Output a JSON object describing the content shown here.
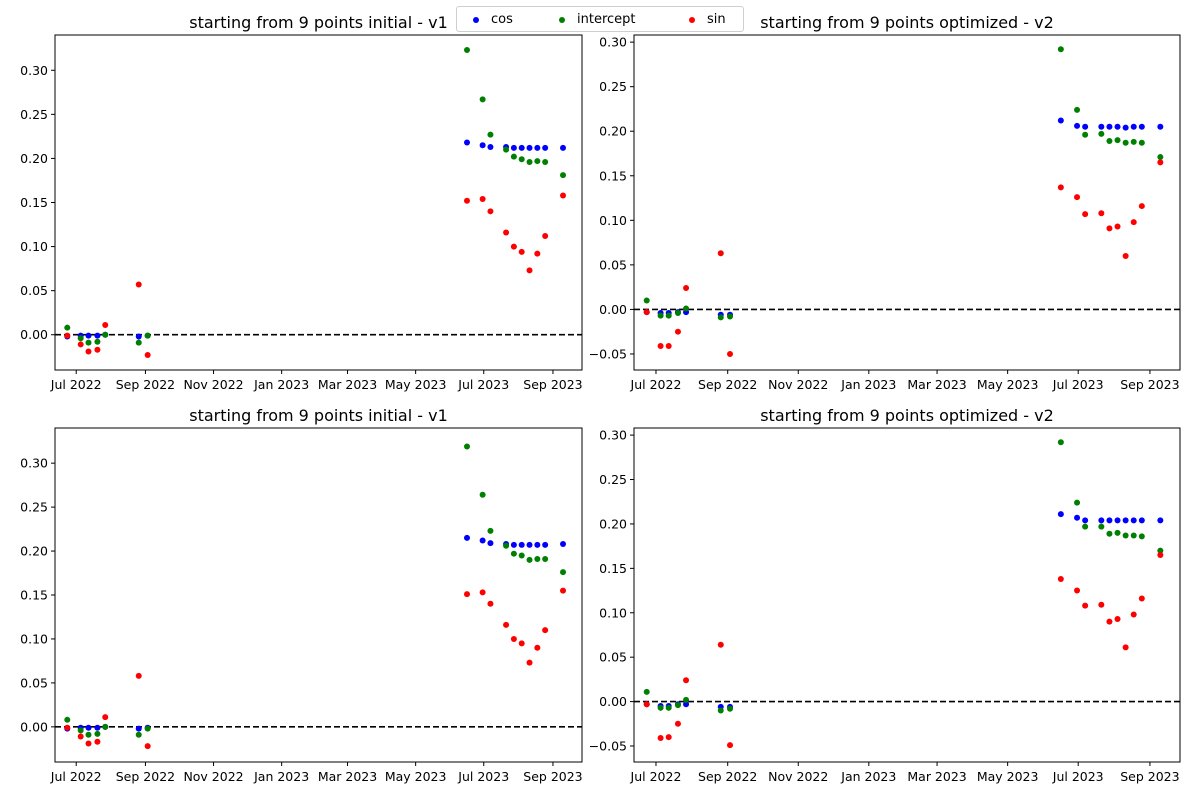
{
  "legend": {
    "placement": "top-center",
    "entries": [
      {
        "name": "cos",
        "color": "#0000ff"
      },
      {
        "name": "intercept",
        "color": "#008000"
      },
      {
        "name": "sin",
        "color": "#ff0000"
      }
    ]
  },
  "chart_data": [
    {
      "type": "scatter",
      "title": "starting from 9 points initial - v1",
      "xlabel": "",
      "ylabel": "",
      "xlim": [
        "2022-06-12",
        "2023-09-27"
      ],
      "ylim": [
        -0.04,
        0.34
      ],
      "xticks": [
        "2022-07-01",
        "2022-09-01",
        "2022-11-01",
        "2023-01-01",
        "2023-03-01",
        "2023-05-01",
        "2023-07-01",
        "2023-09-01"
      ],
      "xtick_labels": [
        "Jul 2022",
        "Sep 2022",
        "Nov 2022",
        "Jan 2023",
        "Mar 2023",
        "May 2023",
        "Jul 2023",
        "Sep 2023"
      ],
      "yticks": [
        0.0,
        0.05,
        0.1,
        0.15,
        0.2,
        0.25,
        0.3
      ],
      "ytick_labels": [
        "0.00",
        "0.05",
        "0.10",
        "0.15",
        "0.20",
        "0.25",
        "0.30"
      ],
      "hline": 0,
      "grid": false,
      "x": [
        "2022-06-23",
        "2022-07-05",
        "2022-07-12",
        "2022-07-20",
        "2022-07-27",
        "2022-08-26",
        "2022-09-03",
        "2023-06-16",
        "2023-06-30",
        "2023-07-07",
        "2023-07-21",
        "2023-07-28",
        "2023-08-04",
        "2023-08-11",
        "2023-08-18",
        "2023-08-25",
        "2023-09-10"
      ],
      "series": [
        {
          "name": "cos",
          "values": [
            -0.002,
            -0.001,
            -0.001,
            -0.001,
            0.0,
            -0.002,
            -0.001,
            0.218,
            0.215,
            0.213,
            0.213,
            0.212,
            0.212,
            0.212,
            0.212,
            0.212,
            0.212
          ]
        },
        {
          "name": "intercept",
          "values": [
            0.008,
            -0.004,
            -0.009,
            -0.008,
            0.0,
            -0.009,
            -0.001,
            0.323,
            0.267,
            0.227,
            0.21,
            0.202,
            0.199,
            0.196,
            0.197,
            0.196,
            0.181
          ]
        },
        {
          "name": "sin",
          "values": [
            -0.001,
            -0.011,
            -0.019,
            -0.017,
            0.011,
            0.057,
            -0.023,
            0.152,
            0.154,
            0.14,
            0.116,
            0.1,
            0.094,
            0.073,
            0.092,
            0.112,
            0.158
          ]
        }
      ]
    },
    {
      "type": "scatter",
      "title": "starting from 9 points optimized - v2",
      "xlabel": "",
      "ylabel": "",
      "xlim": [
        "2022-06-12",
        "2023-09-27"
      ],
      "ylim": [
        -0.068,
        0.308
      ],
      "xticks": [
        "2022-07-01",
        "2022-09-01",
        "2022-11-01",
        "2023-01-01",
        "2023-03-01",
        "2023-05-01",
        "2023-07-01",
        "2023-09-01"
      ],
      "xtick_labels": [
        "Jul 2022",
        "Sep 2022",
        "Nov 2022",
        "Jan 2023",
        "Mar 2023",
        "May 2023",
        "Jul 2023",
        "Sep 2023"
      ],
      "yticks": [
        -0.05,
        0.0,
        0.05,
        0.1,
        0.15,
        0.2,
        0.25,
        0.3
      ],
      "ytick_labels": [
        "−0.05",
        "0.00",
        "0.05",
        "0.10",
        "0.15",
        "0.20",
        "0.25",
        "0.30"
      ],
      "hline": 0,
      "grid": false,
      "x": [
        "2022-06-23",
        "2022-07-05",
        "2022-07-12",
        "2022-07-20",
        "2022-07-27",
        "2022-08-26",
        "2022-09-03",
        "2023-06-16",
        "2023-06-30",
        "2023-07-07",
        "2023-07-21",
        "2023-07-28",
        "2023-08-04",
        "2023-08-11",
        "2023-08-18",
        "2023-08-25",
        "2023-09-10"
      ],
      "series": [
        {
          "name": "cos",
          "values": [
            -0.003,
            -0.004,
            -0.004,
            -0.003,
            -0.003,
            -0.006,
            -0.006,
            0.212,
            0.206,
            0.205,
            0.205,
            0.205,
            0.205,
            0.204,
            0.205,
            0.205,
            0.205
          ]
        },
        {
          "name": "intercept",
          "values": [
            0.01,
            -0.007,
            -0.007,
            -0.004,
            0.001,
            -0.009,
            -0.008,
            0.292,
            0.224,
            0.196,
            0.197,
            0.189,
            0.19,
            0.187,
            0.188,
            0.187,
            0.171
          ]
        },
        {
          "name": "sin",
          "values": [
            -0.003,
            -0.041,
            -0.041,
            -0.025,
            0.024,
            0.063,
            -0.05,
            0.137,
            0.126,
            0.107,
            0.108,
            0.091,
            0.093,
            0.06,
            0.098,
            0.116,
            0.165
          ]
        }
      ]
    },
    {
      "type": "scatter",
      "title": "starting from 9 points initial - v1",
      "xlabel": "",
      "ylabel": "",
      "xlim": [
        "2022-06-12",
        "2023-09-27"
      ],
      "ylim": [
        -0.04,
        0.34
      ],
      "xticks": [
        "2022-07-01",
        "2022-09-01",
        "2022-11-01",
        "2023-01-01",
        "2023-03-01",
        "2023-05-01",
        "2023-07-01",
        "2023-09-01"
      ],
      "xtick_labels": [
        "Jul 2022",
        "Sep 2022",
        "Nov 2022",
        "Jan 2023",
        "Mar 2023",
        "May 2023",
        "Jul 2023",
        "Sep 2023"
      ],
      "yticks": [
        0.0,
        0.05,
        0.1,
        0.15,
        0.2,
        0.25,
        0.3
      ],
      "ytick_labels": [
        "0.00",
        "0.05",
        "0.10",
        "0.15",
        "0.20",
        "0.25",
        "0.30"
      ],
      "hline": 0,
      "grid": false,
      "x": [
        "2022-06-23",
        "2022-07-05",
        "2022-07-12",
        "2022-07-20",
        "2022-07-27",
        "2022-08-26",
        "2022-09-03",
        "2023-06-16",
        "2023-06-30",
        "2023-07-07",
        "2023-07-21",
        "2023-07-28",
        "2023-08-04",
        "2023-08-11",
        "2023-08-18",
        "2023-08-25",
        "2023-09-10"
      ],
      "series": [
        {
          "name": "cos",
          "values": [
            -0.002,
            -0.001,
            -0.001,
            -0.001,
            0.0,
            -0.002,
            -0.001,
            0.215,
            0.212,
            0.209,
            0.208,
            0.207,
            0.207,
            0.207,
            0.207,
            0.207,
            0.208
          ]
        },
        {
          "name": "intercept",
          "values": [
            0.008,
            -0.004,
            -0.009,
            -0.008,
            0.0,
            -0.009,
            -0.002,
            0.319,
            0.264,
            0.223,
            0.206,
            0.197,
            0.195,
            0.19,
            0.191,
            0.191,
            0.176
          ]
        },
        {
          "name": "sin",
          "values": [
            -0.001,
            -0.011,
            -0.019,
            -0.017,
            0.011,
            0.058,
            -0.022,
            0.151,
            0.153,
            0.14,
            0.116,
            0.1,
            0.095,
            0.073,
            0.09,
            0.11,
            0.155
          ]
        }
      ]
    },
    {
      "type": "scatter",
      "title": "starting from 9 points optimized - v2",
      "xlabel": "",
      "ylabel": "",
      "xlim": [
        "2022-06-12",
        "2023-09-27"
      ],
      "ylim": [
        -0.068,
        0.308
      ],
      "xticks": [
        "2022-07-01",
        "2022-09-01",
        "2022-11-01",
        "2023-01-01",
        "2023-03-01",
        "2023-05-01",
        "2023-07-01",
        "2023-09-01"
      ],
      "xtick_labels": [
        "Jul 2022",
        "Sep 2022",
        "Nov 2022",
        "Jan 2023",
        "Mar 2023",
        "May 2023",
        "Jul 2023",
        "Sep 2023"
      ],
      "yticks": [
        -0.05,
        0.0,
        0.05,
        0.1,
        0.15,
        0.2,
        0.25,
        0.3
      ],
      "ytick_labels": [
        "−0.05",
        "0.00",
        "0.05",
        "0.10",
        "0.15",
        "0.20",
        "0.25",
        "0.30"
      ],
      "hline": 0,
      "grid": false,
      "x": [
        "2022-06-23",
        "2022-07-05",
        "2022-07-12",
        "2022-07-20",
        "2022-07-27",
        "2022-08-26",
        "2022-09-03",
        "2023-06-16",
        "2023-06-30",
        "2023-07-07",
        "2023-07-21",
        "2023-07-28",
        "2023-08-04",
        "2023-08-11",
        "2023-08-18",
        "2023-08-25",
        "2023-09-10"
      ],
      "series": [
        {
          "name": "cos",
          "values": [
            -0.003,
            -0.005,
            -0.005,
            -0.003,
            -0.003,
            -0.006,
            -0.006,
            0.211,
            0.207,
            0.204,
            0.204,
            0.204,
            0.204,
            0.204,
            0.204,
            0.204,
            0.204
          ]
        },
        {
          "name": "intercept",
          "values": [
            0.011,
            -0.007,
            -0.007,
            -0.004,
            0.002,
            -0.01,
            -0.008,
            0.292,
            0.224,
            0.197,
            0.197,
            0.189,
            0.19,
            0.187,
            0.187,
            0.186,
            0.17
          ]
        },
        {
          "name": "sin",
          "values": [
            -0.003,
            -0.041,
            -0.04,
            -0.025,
            0.024,
            0.064,
            -0.049,
            0.138,
            0.125,
            0.108,
            0.109,
            0.09,
            0.093,
            0.061,
            0.098,
            0.116,
            0.165
          ]
        }
      ]
    }
  ]
}
